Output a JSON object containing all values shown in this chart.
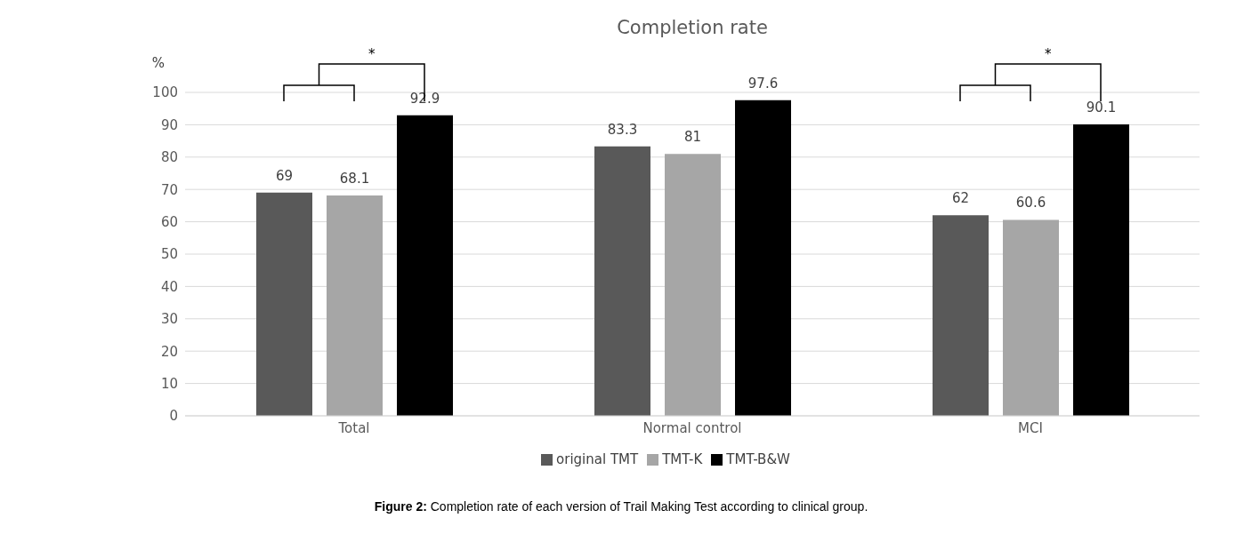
{
  "chart_data": {
    "type": "bar",
    "title": "Completion rate",
    "ylabel": "%",
    "categories": [
      "Total",
      "Normal control",
      "MCI"
    ],
    "series": [
      {
        "name": "original TMT",
        "color": "#595959",
        "values": [
          69,
          83.3,
          62
        ]
      },
      {
        "name": "TMT-K",
        "color": "#a6a6a6",
        "values": [
          68.1,
          81,
          60.6
        ]
      },
      {
        "name": "TMT-B&W",
        "color": "#000000",
        "values": [
          92.9,
          97.6,
          90.1
        ]
      }
    ],
    "ylim": [
      0,
      100
    ],
    "yticks": [
      0,
      10,
      20,
      30,
      40,
      50,
      60,
      70,
      80,
      90,
      100
    ],
    "grid": "y",
    "legend": "bottom",
    "data_labels": true,
    "annotations": [
      "*",
      "*",
      "Figure 2: Completion rate of each version of Trail Making Test according to clinical group."
    ]
  }
}
